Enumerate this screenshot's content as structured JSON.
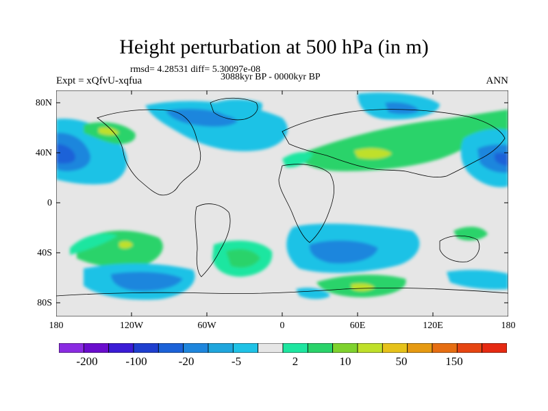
{
  "title": "Height perturbation at 500 hPa (in m)",
  "stats": "rmsd= 4.28531 diff= 5.30097e-08",
  "experiment": "Expt = xQfvU-xqfua",
  "period": "3088kyr BP - 0000kyr BP",
  "season": "ANN",
  "y_ticks": [
    "80N",
    "40N",
    "0",
    "40S",
    "80S"
  ],
  "x_ticks": [
    "180",
    "120W",
    "60W",
    "0",
    "60E",
    "120E",
    "180"
  ],
  "colorbar": {
    "colors": [
      "#8a2be2",
      "#6a0dcd",
      "#3b1cd6",
      "#1f3fcf",
      "#1b62d8",
      "#1e86dd",
      "#1fa6dd",
      "#1fc2e6",
      "#e6e6e6",
      "#1ee6a0",
      "#2ad36a",
      "#7fd22e",
      "#bfe02a",
      "#e6c21a",
      "#e69a12",
      "#e66e12",
      "#e64512",
      "#e62a12"
    ],
    "labels": [
      "-200",
      "-100",
      "-20",
      "-5",
      "2",
      "10",
      "50",
      "150"
    ]
  },
  "map_colors": {
    "background": "#e6e6e6",
    "weak_neg": "#1fc2e6",
    "mid_neg": "#1e86dd",
    "strong_neg": "#1b62d8",
    "weak_pos": "#1ee6a0",
    "mid_pos": "#2ad36a",
    "strong_pos": "#bfe02a"
  }
}
